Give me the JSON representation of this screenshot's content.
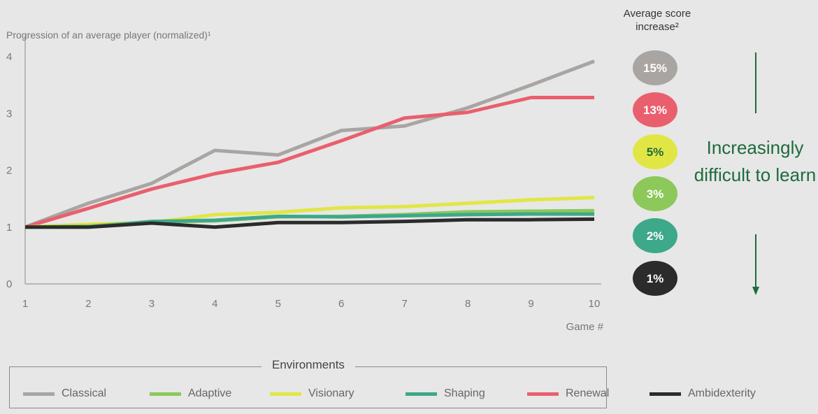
{
  "subtitle": "Progression of an average player (normalized)¹",
  "score_header": "Average score increase²",
  "side_note": "Increasingly difficult to learn",
  "x_axis_title": "Game #",
  "legend_title": "Environments",
  "colors": {
    "Classical": "#a8a5a2",
    "Adaptive": "#8cc85a",
    "Visionary": "#e2e645",
    "Shaping": "#3da88a",
    "Renewal": "#ea5f6d",
    "Ambidexterity": "#2b2b2b",
    "arrow": "#1e6b3c"
  },
  "chart_data": {
    "type": "line",
    "x": [
      1,
      2,
      3,
      4,
      5,
      6,
      7,
      8,
      9,
      10
    ],
    "x_label": "Game #",
    "y_label": "Progression of an average player (normalized)¹",
    "ylim": [
      0,
      4
    ],
    "yticks": [
      0,
      1,
      2,
      3,
      4
    ],
    "series": [
      {
        "name": "Classical",
        "values": [
          1.0,
          1.42,
          1.77,
          2.35,
          2.27,
          2.7,
          2.78,
          3.1,
          3.5,
          3.92
        ],
        "badge": "15%"
      },
      {
        "name": "Renewal",
        "values": [
          1.0,
          1.33,
          1.67,
          1.94,
          2.14,
          2.52,
          2.92,
          3.02,
          3.28,
          3.28
        ],
        "badge": "13%"
      },
      {
        "name": "Visionary",
        "values": [
          1.0,
          1.05,
          1.08,
          1.22,
          1.26,
          1.34,
          1.36,
          1.42,
          1.48,
          1.52
        ],
        "badge": "5%"
      },
      {
        "name": "Adaptive",
        "values": [
          1.0,
          1.02,
          1.09,
          1.11,
          1.18,
          1.19,
          1.22,
          1.27,
          1.28,
          1.29
        ],
        "badge": "3%"
      },
      {
        "name": "Shaping",
        "values": [
          1.0,
          1.0,
          1.1,
          1.12,
          1.19,
          1.18,
          1.2,
          1.22,
          1.23,
          1.23
        ],
        "badge": "2%"
      },
      {
        "name": "Ambidexterity",
        "values": [
          1.0,
          1.0,
          1.07,
          1.0,
          1.08,
          1.08,
          1.1,
          1.13,
          1.13,
          1.14
        ],
        "badge": "1%"
      }
    ],
    "legend": [
      "Classical",
      "Adaptive",
      "Visionary",
      "Shaping",
      "Renewal",
      "Ambidexterity"
    ],
    "legend_position": "bottom",
    "grid": false
  }
}
